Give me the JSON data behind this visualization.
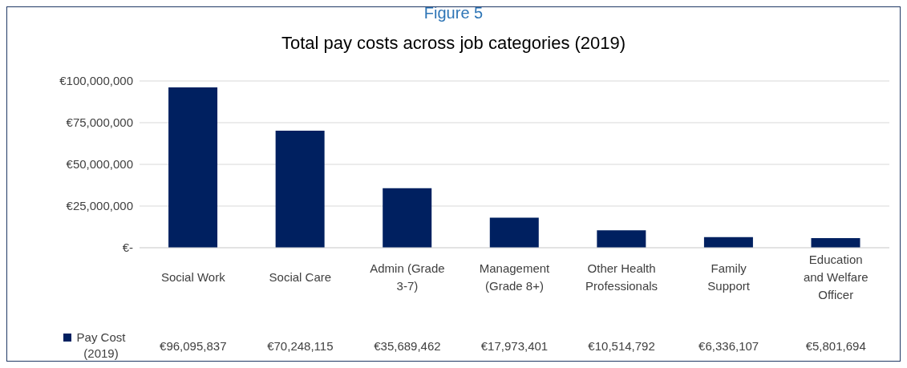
{
  "chart_data": {
    "type": "bar",
    "title": "Total pay costs across job categories (2019)",
    "annotations": [
      "Figure 5"
    ],
    "categories": [
      "Social Work",
      "Social Care",
      "Admin (Grade 3-7)",
      "Management (Grade 8+)",
      "Other Health Professionals",
      "Family Support",
      "Education and Welfare Officer"
    ],
    "series": [
      {
        "name": "Pay Cost (2019)",
        "color": "#002060",
        "values": [
          96095837,
          70248115,
          35689462,
          17973401,
          10514792,
          6336107,
          5801694
        ],
        "value_labels": [
          "€96,095,837",
          "€70,248,115",
          "€35,689,462",
          "€17,973,401",
          "€10,514,792",
          "€6,336,107",
          "€5,801,694"
        ]
      }
    ],
    "ylim": [
      0,
      100000000
    ],
    "yticks": [
      {
        "value": 0,
        "label": "€-"
      },
      {
        "value": 25000000,
        "label": "€25,000,000"
      },
      {
        "value": 50000000,
        "label": "€50,000,000"
      },
      {
        "value": 75000000,
        "label": "€75,000,000"
      },
      {
        "value": 100000000,
        "label": "€100,000,000"
      }
    ],
    "grid": "y",
    "legend": "bottom left"
  }
}
